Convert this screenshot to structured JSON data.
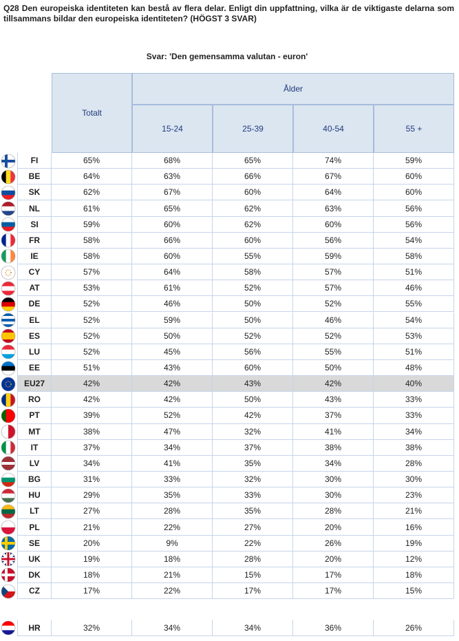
{
  "title": "Q28 Den europeiska identiteten kan bestå av flera delar. Enligt din uppfattning, vilka är de viktigaste delarna som tillsammans bildar den europeiska identiteten? (HÖGST 3 SVAR)",
  "subtitle": "Svar: 'Den gemensamma valutan - euron'",
  "table": {
    "header": {
      "total": "Totalt",
      "group": "Ålder",
      "ages": [
        "15-24",
        "25-39",
        "40-54",
        "55 +"
      ]
    },
    "rows": [
      [
        "FI",
        "65%",
        "68%",
        "65%",
        "74%",
        "59%"
      ],
      [
        "BE",
        "64%",
        "63%",
        "66%",
        "67%",
        "60%"
      ],
      [
        "SK",
        "62%",
        "67%",
        "60%",
        "64%",
        "60%"
      ],
      [
        "NL",
        "61%",
        "65%",
        "62%",
        "63%",
        "56%"
      ],
      [
        "SI",
        "59%",
        "60%",
        "62%",
        "60%",
        "56%"
      ],
      [
        "FR",
        "58%",
        "66%",
        "60%",
        "56%",
        "54%"
      ],
      [
        "IE",
        "58%",
        "60%",
        "55%",
        "59%",
        "58%"
      ],
      [
        "CY",
        "57%",
        "64%",
        "58%",
        "57%",
        "51%"
      ],
      [
        "AT",
        "53%",
        "61%",
        "52%",
        "57%",
        "46%"
      ],
      [
        "DE",
        "52%",
        "46%",
        "50%",
        "52%",
        "55%"
      ],
      [
        "EL",
        "52%",
        "59%",
        "50%",
        "46%",
        "54%"
      ],
      [
        "ES",
        "52%",
        "50%",
        "52%",
        "52%",
        "53%"
      ],
      [
        "LU",
        "52%",
        "45%",
        "56%",
        "55%",
        "51%"
      ],
      [
        "EE",
        "51%",
        "43%",
        "60%",
        "50%",
        "48%"
      ],
      [
        "EU27",
        "42%",
        "42%",
        "43%",
        "42%",
        "40%"
      ],
      [
        "RO",
        "42%",
        "42%",
        "50%",
        "43%",
        "33%"
      ],
      [
        "PT",
        "39%",
        "52%",
        "42%",
        "37%",
        "33%"
      ],
      [
        "MT",
        "38%",
        "47%",
        "32%",
        "41%",
        "34%"
      ],
      [
        "IT",
        "37%",
        "34%",
        "37%",
        "38%",
        "38%"
      ],
      [
        "LV",
        "34%",
        "41%",
        "35%",
        "34%",
        "28%"
      ],
      [
        "BG",
        "31%",
        "33%",
        "32%",
        "30%",
        "30%"
      ],
      [
        "HU",
        "29%",
        "35%",
        "33%",
        "30%",
        "23%"
      ],
      [
        "LT",
        "27%",
        "28%",
        "35%",
        "28%",
        "21%"
      ],
      [
        "PL",
        "21%",
        "22%",
        "27%",
        "20%",
        "16%"
      ],
      [
        "SE",
        "20%",
        "9%",
        "22%",
        "26%",
        "19%"
      ],
      [
        "UK",
        "19%",
        "18%",
        "28%",
        "20%",
        "12%"
      ],
      [
        "DK",
        "18%",
        "21%",
        "15%",
        "17%",
        "18%"
      ],
      [
        "CZ",
        "17%",
        "22%",
        "17%",
        "17%",
        "15%"
      ]
    ],
    "extra_row": [
      "HR",
      "32%",
      "34%",
      "34%",
      "36%",
      "26%"
    ]
  }
}
